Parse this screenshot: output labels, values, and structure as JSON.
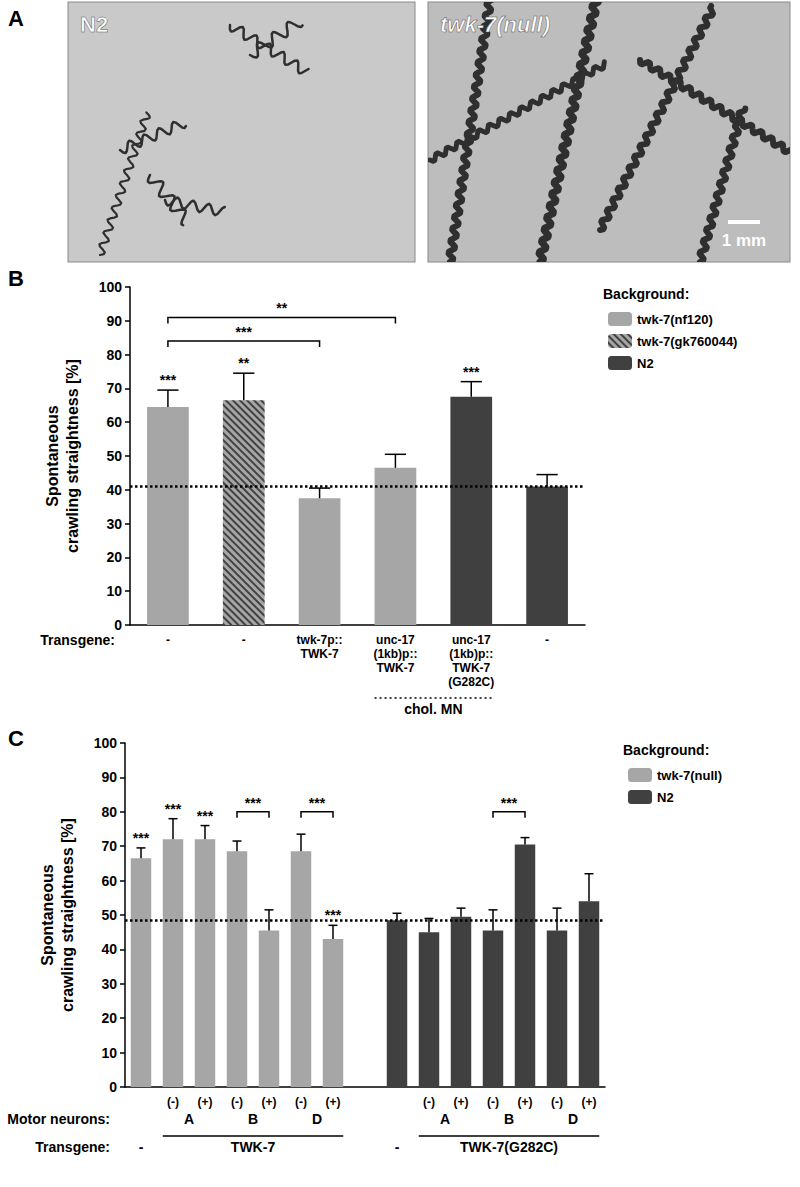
{
  "images": {
    "label": "A",
    "panels": [
      {
        "label": "N2"
      },
      {
        "label": "twk-7(null)"
      }
    ],
    "scale_bar": "1 mm"
  },
  "chart_data": [
    {
      "type": "bar",
      "label": "B",
      "y_label": "Spontaneous\ncrawling straightness [%]",
      "x_label": "Transgene:",
      "categories": [
        "-",
        "-",
        "twk-7p::\nTWK-7",
        "unc-17\n(1kb)p::\nTWK-7",
        "unc-17\n(1kb)p::\nTWK-7\n(G282C)",
        "-"
      ],
      "series": [
        {
          "name": "twk-7(nf120)",
          "color": "#a6a6a6",
          "values": [
            64.5,
            null,
            37.5,
            46.5,
            null,
            null
          ],
          "errors": [
            5,
            null,
            3,
            4,
            null,
            null
          ]
        },
        {
          "name": "twk-7(gk760044)",
          "color": "#a6a6a6",
          "marker": "hatch",
          "values": [
            null,
            66.5,
            null,
            null,
            null,
            null
          ],
          "errors": [
            null,
            8,
            null,
            null,
            null,
            null
          ]
        },
        {
          "name": "N2",
          "color": "#404040",
          "values": [
            null,
            null,
            null,
            null,
            67.5,
            41
          ],
          "errors": [
            null,
            null,
            null,
            null,
            4.5,
            3.5
          ]
        }
      ],
      "legend_title": "Background:",
      "legend": "top right",
      "ylim": [
        0,
        100
      ],
      "yticks": [
        0,
        10,
        20,
        30,
        40,
        50,
        60,
        70,
        80,
        90,
        100
      ],
      "grid": false,
      "reference_line": 41,
      "bar_stars": [
        {
          "index": 0,
          "text": "***"
        },
        {
          "index": 1,
          "text": "**"
        },
        {
          "index": 4,
          "text": "***"
        }
      ],
      "brackets": [
        {
          "from": 0,
          "to": 2,
          "y": 84,
          "text": "***"
        },
        {
          "from": 0,
          "to": 3,
          "y": 91,
          "text": "**"
        }
      ],
      "rows": [
        {
          "groups": [
            {
              "text": "chol. MN",
              "from": 3,
              "to": 4,
              "line_style": "dotted"
            }
          ]
        }
      ]
    },
    {
      "type": "bar",
      "label": "C",
      "y_label": "Spontaneous\ncrawling straightness [%]",
      "categories": [
        null,
        "(-)",
        "(+)",
        "(-)",
        "(+)",
        "(-)",
        "(+)",
        null,
        null,
        "(-)",
        "(+)",
        "(-)",
        "(+)",
        "(-)",
        "(+)"
      ],
      "series": [
        {
          "name": "twk-7(null)",
          "color": "#a6a6a6",
          "values": [
            66.5,
            72,
            72,
            68.5,
            45.5,
            68.5,
            43,
            null,
            null,
            null,
            null,
            null,
            null,
            null,
            null
          ],
          "errors": [
            3,
            6,
            4,
            3,
            6,
            5,
            4,
            null,
            null,
            null,
            null,
            null,
            null,
            null,
            null
          ]
        },
        {
          "name": "N2",
          "color": "#404040",
          "values": [
            null,
            null,
            null,
            null,
            null,
            null,
            null,
            null,
            48.5,
            45,
            49.5,
            45.5,
            70.5,
            45.5,
            54
          ],
          "errors": [
            null,
            null,
            null,
            null,
            null,
            null,
            null,
            null,
            2,
            4,
            2.5,
            6,
            2,
            6.5,
            8
          ]
        }
      ],
      "legend_title": "Background:",
      "legend": "top right",
      "ylim": [
        0,
        100
      ],
      "yticks": [
        0,
        10,
        20,
        30,
        40,
        50,
        60,
        70,
        80,
        90,
        100
      ],
      "grid": false,
      "reference_line": 48.5,
      "bar_stars": [
        {
          "index": 0,
          "text": "***"
        },
        {
          "index": 1,
          "text": "***"
        },
        {
          "index": 2,
          "text": "***"
        },
        {
          "index": 6,
          "text": "***"
        }
      ],
      "brackets": [
        {
          "from": 3,
          "to": 4,
          "y": 80,
          "text": "***"
        },
        {
          "from": 5,
          "to": 6,
          "y": 80,
          "text": "***"
        },
        {
          "from": 11,
          "to": 12,
          "y": 80,
          "text": "***"
        }
      ],
      "rows": [
        {
          "title": "Motor neurons:",
          "groups": [
            {
              "text": "A",
              "from": 1,
              "to": 2
            },
            {
              "text": "B",
              "from": 3,
              "to": 4
            },
            {
              "text": "D",
              "from": 5,
              "to": 6
            },
            {
              "text": "A",
              "from": 9,
              "to": 10
            },
            {
              "text": "B",
              "from": 11,
              "to": 12
            },
            {
              "text": "D",
              "from": 13,
              "to": 14
            }
          ]
        },
        {
          "title": "Transgene:",
          "groups": [
            {
              "text": "-",
              "from": 0,
              "to": 0
            },
            {
              "text": "TWK-7",
              "from": 1,
              "to": 6,
              "line_style": "solid"
            },
            {
              "text": "-",
              "from": 8,
              "to": 8
            },
            {
              "text": "TWK-7(G282C)",
              "from": 9,
              "to": 14,
              "line_style": "solid"
            }
          ]
        }
      ]
    }
  ]
}
